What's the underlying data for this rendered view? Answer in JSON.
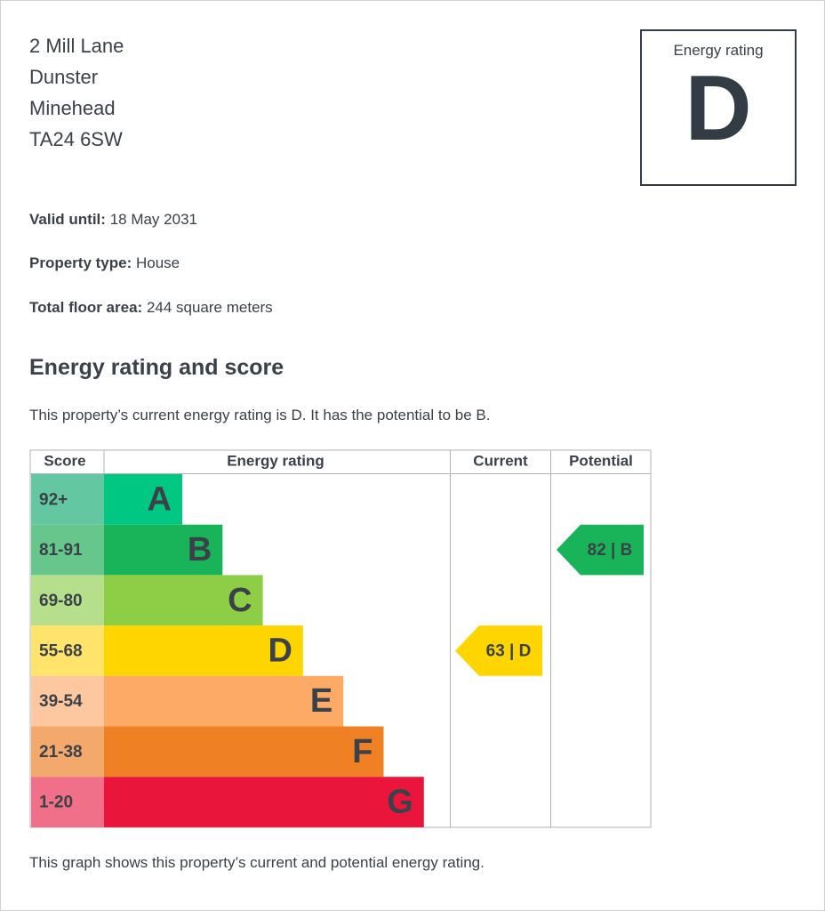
{
  "address": [
    "2 Mill Lane",
    "Dunster",
    "Minehead",
    "TA24 6SW"
  ],
  "rating_box": {
    "label": "Energy rating",
    "rating": "D"
  },
  "details": [
    {
      "label": "Valid until:",
      "value": "18 May 2031"
    },
    {
      "label": "Property type:",
      "value": "House"
    },
    {
      "label": "Total floor area:",
      "value": "244 square meters"
    }
  ],
  "heading": "Energy rating and score",
  "summary": "This property’s current energy rating is D. It has the potential to be B.",
  "graph": {
    "headers": [
      "Score",
      "Energy rating",
      "Current",
      "Potential"
    ],
    "bands": [
      {
        "score": "92+",
        "letter": "A",
        "color": "#00c781",
        "score_color": "#63c7a2"
      },
      {
        "score": "81-91",
        "letter": "B",
        "color": "#19b459",
        "score_color": "#66c68c"
      },
      {
        "score": "69-80",
        "letter": "C",
        "color": "#8dce46",
        "score_color": "#b6df8c"
      },
      {
        "score": "55-68",
        "letter": "D",
        "color": "#ffd500",
        "score_color": "#ffe36a"
      },
      {
        "score": "39-54",
        "letter": "E",
        "color": "#fcaa65",
        "score_color": "#fdc7a0"
      },
      {
        "score": "21-38",
        "letter": "F",
        "color": "#ef8023",
        "score_color": "#f3a86c"
      },
      {
        "score": "1-20",
        "letter": "G",
        "color": "#e9153b",
        "score_color": "#ef7088"
      }
    ],
    "current": {
      "label": "63 | D",
      "color": "#ffd500"
    },
    "potential": {
      "label": "82 | B",
      "color": "#19b459"
    }
  },
  "caption": "This graph shows this property’s current and potential energy rating."
}
